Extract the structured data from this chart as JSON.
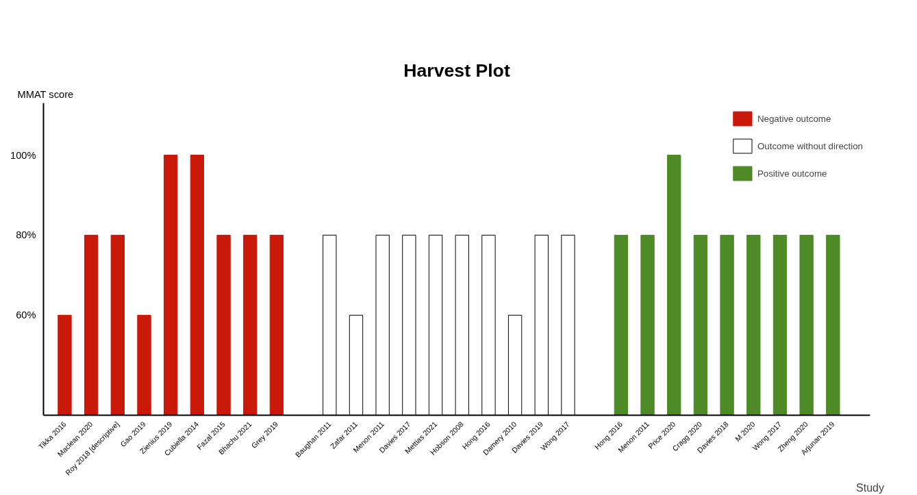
{
  "chart_data": {
    "type": "bar",
    "title": "Harvest Plot",
    "xlabel": "Study",
    "ylabel": "MMAT score",
    "categories": [
      "Tikka 2016",
      "Maclean 2020",
      "Roy 2018 [descriptive]",
      "Gao 2019",
      "Zienius 2019",
      "Cubiella 2014",
      "Fazal 2015",
      "Bhachu 2021",
      "Grey 2019",
      null,
      "Baughan 2011",
      "Zafar 2011",
      "Menon 2011",
      "Davies 2017",
      "Mettias 2021",
      "Hobson 2008",
      "Hong 2016",
      "Damery 2010",
      "Davies 2019",
      "Wong 2017",
      null,
      "Hong 2016",
      "Menon 2011",
      "Price 2020",
      "Cragg 2020",
      "Davies 2018",
      "M 2020",
      "Wong 2017",
      "Zheng 2020",
      "Arjunan 2019"
    ],
    "series": [
      {
        "name": "Negative outcome",
        "color": "#c8190a",
        "values": [
          60,
          80,
          80,
          60,
          100,
          100,
          80,
          80,
          80,
          null,
          null,
          null,
          null,
          null,
          null,
          null,
          null,
          null,
          null,
          null,
          null,
          null,
          null,
          null,
          null,
          null,
          null,
          null,
          null,
          null
        ]
      },
      {
        "name": "Outcome without direction",
        "color": "#ffffff",
        "values": [
          null,
          null,
          null,
          null,
          null,
          null,
          null,
          null,
          null,
          null,
          80,
          60,
          80,
          80,
          80,
          80,
          80,
          60,
          80,
          80,
          null,
          null,
          null,
          null,
          null,
          null,
          null,
          null,
          null,
          null
        ]
      },
      {
        "name": "Positive outcome",
        "color": "#4e8a25",
        "values": [
          null,
          null,
          null,
          null,
          null,
          null,
          null,
          null,
          null,
          null,
          null,
          null,
          null,
          null,
          null,
          null,
          null,
          null,
          null,
          null,
          null,
          80,
          80,
          100,
          80,
          80,
          80,
          80,
          80,
          80
        ]
      }
    ],
    "ylim": [
      35,
      113
    ],
    "yticks": [
      {
        "value": 60,
        "label": "60%"
      },
      {
        "value": 80,
        "label": "80%"
      },
      {
        "value": 100,
        "label": "100%"
      }
    ],
    "grid": false,
    "legend": "top right"
  }
}
